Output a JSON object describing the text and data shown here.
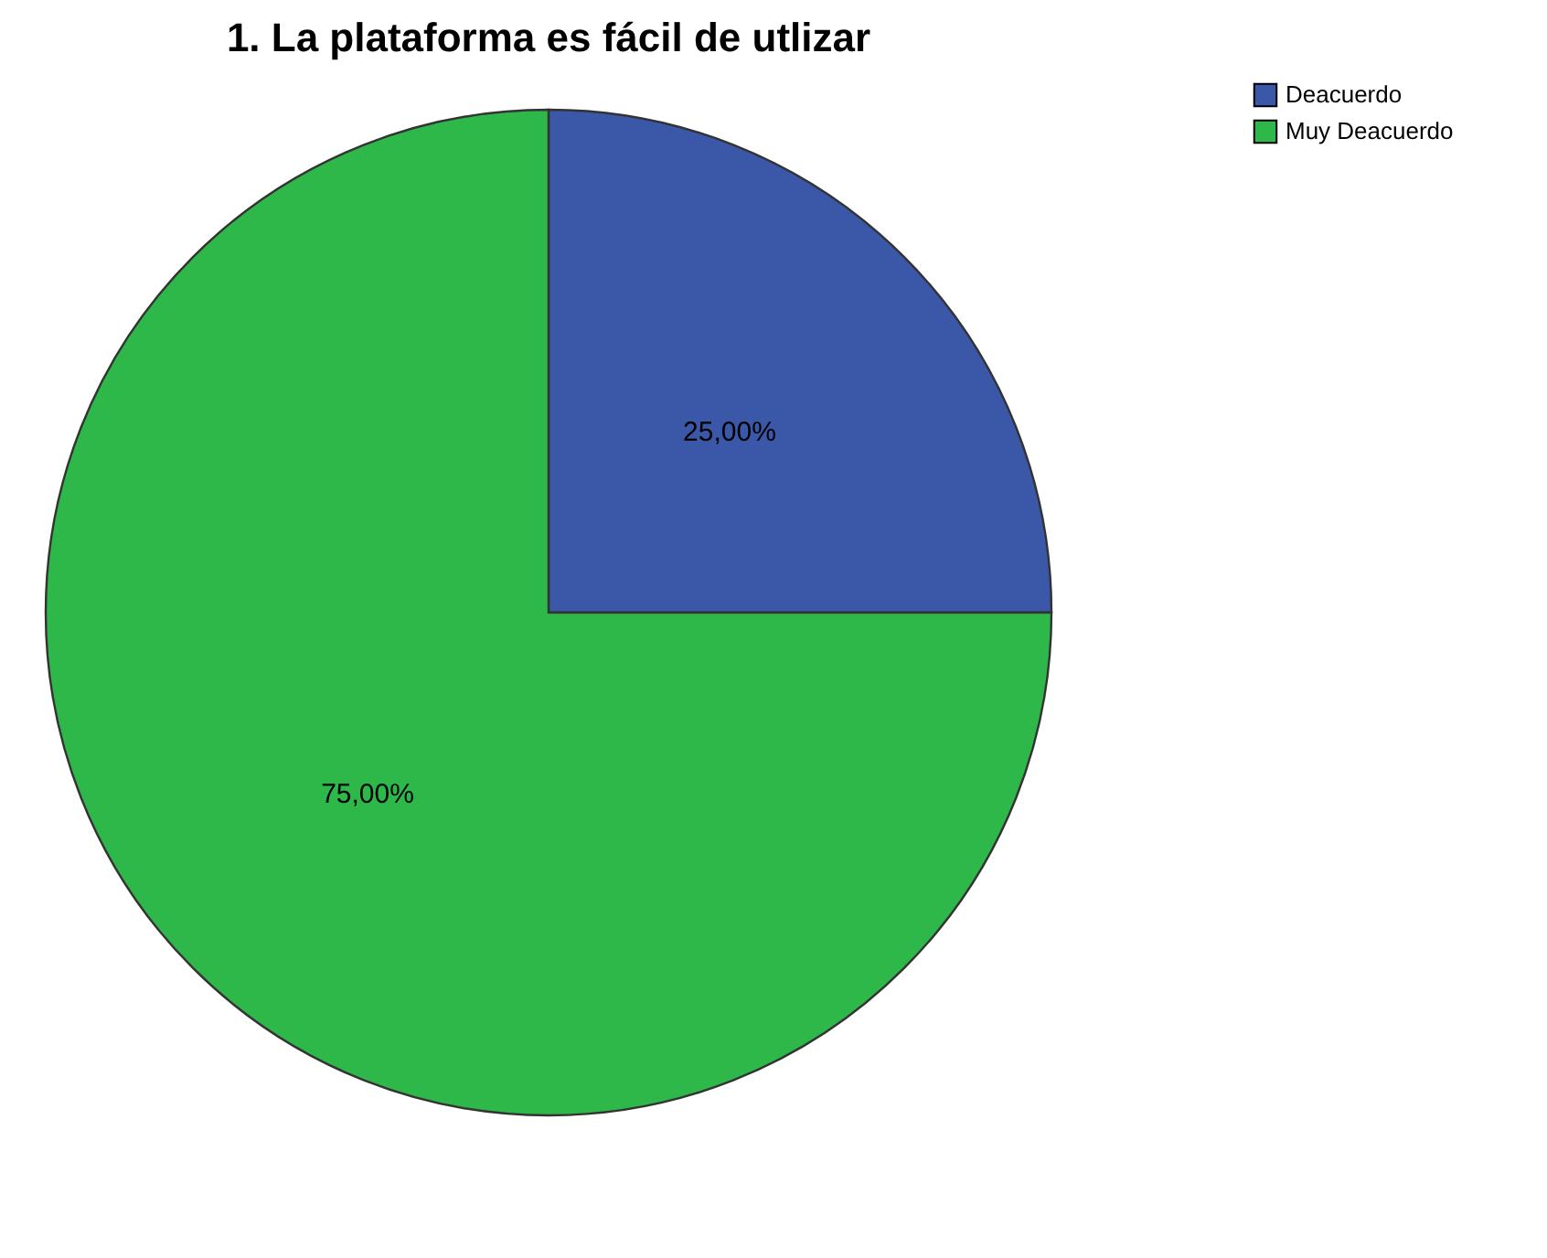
{
  "chart_data": {
    "type": "pie",
    "title": "1. La plataforma es fácil de utlizar",
    "categories": [
      "Deacuerdo",
      "Muy Deacuerdo"
    ],
    "values": [
      25,
      75
    ],
    "colors": [
      "#3b57a8",
      "#2fb84a"
    ],
    "value_labels": [
      "25,00%",
      "75,00%"
    ],
    "legend": "top right"
  }
}
